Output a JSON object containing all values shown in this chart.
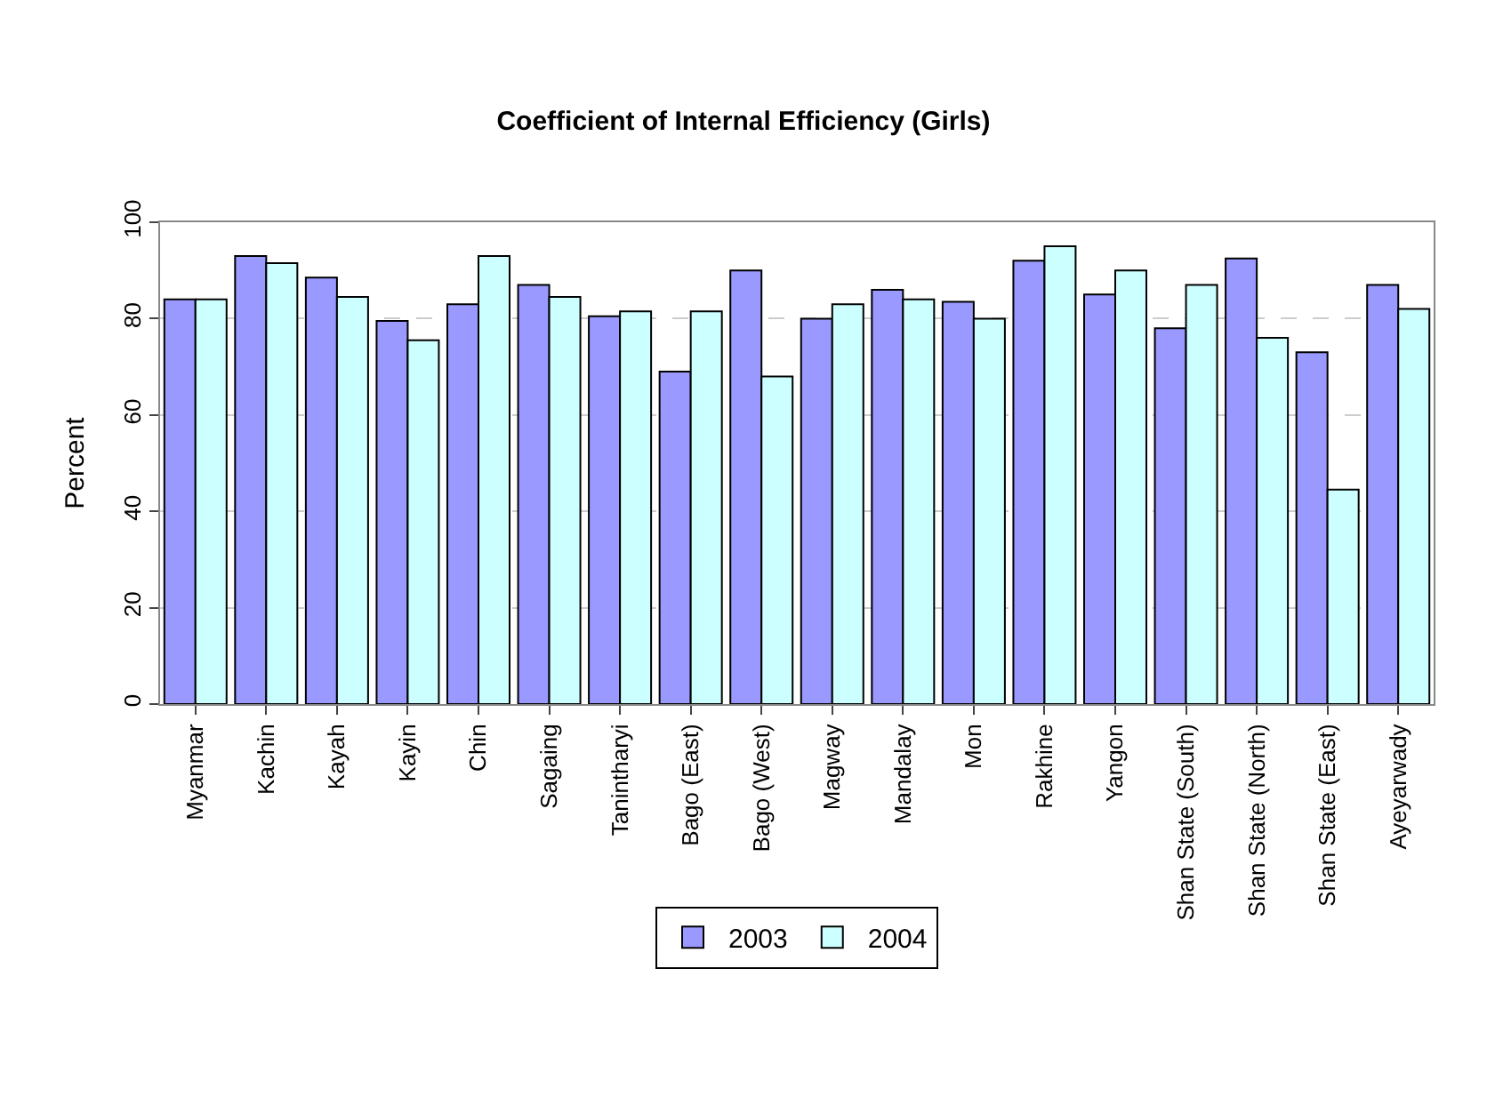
{
  "chart_data": {
    "type": "bar",
    "title": "Coefficient of Internal Efficiency (Girls)",
    "ylabel": "Percent",
    "categories": [
      "Myanmar",
      "Kachin",
      "Kayah",
      "Kayin",
      "Chin",
      "Sagaing",
      "Tanintharyi",
      "Bago (East)",
      "Bago (West)",
      "Magway",
      "Mandalay",
      "Mon",
      "Rakhine",
      "Yangon",
      "Shan State (South)",
      "Shan State (North)",
      "Shan State (East)",
      "Ayeyarwady"
    ],
    "series": [
      {
        "name": "2003",
        "color": "#9999ff",
        "values": [
          84,
          93,
          88.5,
          79.5,
          83,
          87,
          80.5,
          69,
          90,
          80,
          86,
          83.5,
          92,
          85,
          78,
          92.5,
          73,
          87
        ]
      },
      {
        "name": "2004",
        "color": "#ccffff",
        "values": [
          84,
          91.5,
          84.5,
          75.5,
          93,
          84.5,
          81.5,
          81.5,
          68,
          83,
          84,
          80,
          95,
          90,
          87,
          76,
          44.5,
          82
        ]
      }
    ],
    "ylim": [
      0,
      100
    ],
    "yticks": [
      0,
      20,
      40,
      60,
      80,
      100
    ],
    "grid": "y",
    "legend": "bottom"
  }
}
